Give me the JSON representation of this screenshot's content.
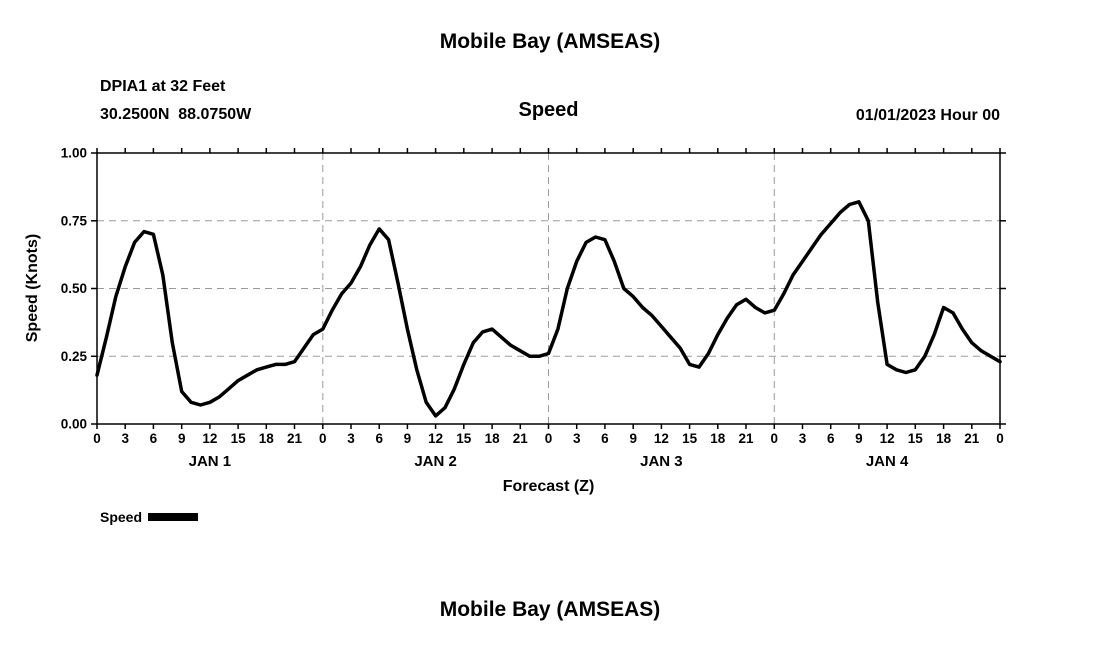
{
  "page": {
    "title_top": "Mobile Bay (AMSEAS)",
    "title_bottom": "Mobile Bay (AMSEAS)"
  },
  "header": {
    "station_line1": "DPIA1 at 32 Feet",
    "station_line2": "30.2500N  88.0750W",
    "panel_label": "Speed",
    "datetime_label": "01/01/2023 Hour 00"
  },
  "legend": {
    "label": "Speed",
    "swatch_color": "#000000"
  },
  "chart_data": {
    "type": "line",
    "title": "Speed",
    "xlabel": "Forecast (Z)",
    "ylabel": "Speed (Knots)",
    "ylim": [
      0,
      1
    ],
    "yticks": [
      0.0,
      0.25,
      0.5,
      0.75,
      1.0
    ],
    "ytick_labels": [
      "0.00",
      "0.25",
      "0.50",
      "0.75",
      "1.00"
    ],
    "xlim": [
      0,
      96
    ],
    "xtick_step_hours": 3,
    "xtick_labels": [
      "0",
      "3",
      "6",
      "9",
      "12",
      "15",
      "18",
      "21",
      "0",
      "3",
      "6",
      "9",
      "12",
      "15",
      "18",
      "21",
      "0",
      "3",
      "6",
      "9",
      "12",
      "15",
      "18",
      "21",
      "0",
      "3",
      "6",
      "9",
      "12",
      "15",
      "18",
      "21",
      "0"
    ],
    "day_labels": [
      "JAN 1",
      "JAN 2",
      "JAN 3",
      "JAN 4"
    ],
    "day_label_hours": [
      12,
      36,
      60,
      84
    ],
    "vgrid_hours": [
      24,
      48,
      72
    ],
    "grid": "dashed",
    "grid_color": "#9a9a9a",
    "line_color": "#000000",
    "line_width": 3.5,
    "series": [
      {
        "name": "Speed",
        "x_start": 0,
        "x_step": 1,
        "values": [
          0.18,
          0.32,
          0.47,
          0.58,
          0.67,
          0.71,
          0.7,
          0.55,
          0.3,
          0.12,
          0.08,
          0.07,
          0.08,
          0.1,
          0.13,
          0.16,
          0.18,
          0.2,
          0.21,
          0.22,
          0.22,
          0.23,
          0.28,
          0.33,
          0.35,
          0.42,
          0.48,
          0.52,
          0.58,
          0.66,
          0.72,
          0.68,
          0.52,
          0.35,
          0.2,
          0.08,
          0.03,
          0.06,
          0.13,
          0.22,
          0.3,
          0.34,
          0.35,
          0.32,
          0.29,
          0.27,
          0.25,
          0.25,
          0.26,
          0.35,
          0.5,
          0.6,
          0.67,
          0.69,
          0.68,
          0.6,
          0.5,
          0.47,
          0.43,
          0.4,
          0.36,
          0.32,
          0.28,
          0.22,
          0.21,
          0.26,
          0.33,
          0.39,
          0.44,
          0.46,
          0.43,
          0.41,
          0.42,
          0.48,
          0.55,
          0.6,
          0.65,
          0.7,
          0.74,
          0.78,
          0.81,
          0.82,
          0.75,
          0.45,
          0.22,
          0.2,
          0.19,
          0.2,
          0.25,
          0.33,
          0.43,
          0.41,
          0.35,
          0.3,
          0.27,
          0.25,
          0.23
        ]
      }
    ]
  }
}
